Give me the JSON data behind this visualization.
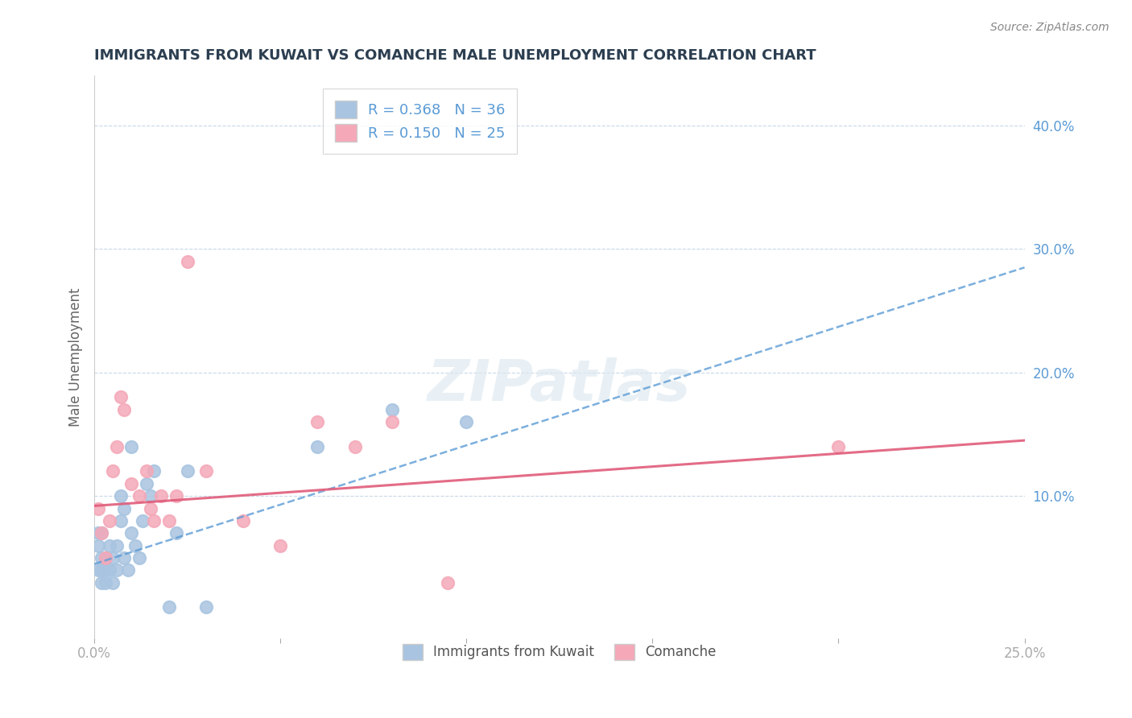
{
  "title": "IMMIGRANTS FROM KUWAIT VS COMANCHE MALE UNEMPLOYMENT CORRELATION CHART",
  "source": "Source: ZipAtlas.com",
  "ylabel": "Male Unemployment",
  "xlim": [
    0.0,
    0.25
  ],
  "ylim": [
    -0.015,
    0.44
  ],
  "yticks": [
    0.0,
    0.1,
    0.2,
    0.3,
    0.4
  ],
  "ytick_labels": [
    "",
    "10.0%",
    "20.0%",
    "30.0%",
    "40.0%"
  ],
  "xticks": [
    0.0,
    0.05,
    0.1,
    0.15,
    0.2,
    0.25
  ],
  "xtick_labels": [
    "0.0%",
    "",
    "",
    "",
    "",
    "25.0%"
  ],
  "watermark": "ZIPatlas",
  "legend_entries": [
    {
      "label": "R = 0.368   N = 36",
      "color": "#a8c4e0"
    },
    {
      "label": "R = 0.150   N = 25",
      "color": "#f4a8b8"
    }
  ],
  "series1_name": "Immigrants from Kuwait",
  "series1_color": "#a8c4e0",
  "series2_name": "Comanche",
  "series2_color": "#f4a8b8",
  "blue_line_color": "#5b9bd5",
  "pink_line_color": "#e05c7a",
  "series1_x": [
    0.001,
    0.001,
    0.001,
    0.002,
    0.002,
    0.002,
    0.002,
    0.003,
    0.003,
    0.003,
    0.004,
    0.004,
    0.005,
    0.005,
    0.006,
    0.006,
    0.007,
    0.007,
    0.008,
    0.008,
    0.009,
    0.01,
    0.01,
    0.011,
    0.012,
    0.013,
    0.014,
    0.015,
    0.016,
    0.02,
    0.022,
    0.025,
    0.03,
    0.06,
    0.08,
    0.1
  ],
  "series1_y": [
    0.04,
    0.06,
    0.07,
    0.03,
    0.04,
    0.05,
    0.07,
    0.03,
    0.04,
    0.05,
    0.04,
    0.06,
    0.03,
    0.05,
    0.04,
    0.06,
    0.08,
    0.1,
    0.05,
    0.09,
    0.04,
    0.07,
    0.14,
    0.06,
    0.05,
    0.08,
    0.11,
    0.1,
    0.12,
    0.01,
    0.07,
    0.12,
    0.01,
    0.14,
    0.17,
    0.16
  ],
  "series2_x": [
    0.001,
    0.002,
    0.003,
    0.004,
    0.005,
    0.006,
    0.007,
    0.008,
    0.01,
    0.012,
    0.014,
    0.015,
    0.016,
    0.018,
    0.02,
    0.022,
    0.025,
    0.03,
    0.04,
    0.05,
    0.06,
    0.07,
    0.08,
    0.095,
    0.2
  ],
  "series2_y": [
    0.09,
    0.07,
    0.05,
    0.08,
    0.12,
    0.14,
    0.18,
    0.17,
    0.11,
    0.1,
    0.12,
    0.09,
    0.08,
    0.1,
    0.08,
    0.1,
    0.29,
    0.12,
    0.08,
    0.06,
    0.16,
    0.14,
    0.16,
    0.03,
    0.14
  ],
  "blue_trend_x": [
    0.0,
    0.25
  ],
  "blue_trend_y": [
    0.045,
    0.285
  ],
  "pink_trend_x": [
    0.0,
    0.25
  ],
  "pink_trend_y": [
    0.092,
    0.145
  ],
  "background_color": "#ffffff",
  "grid_color": "#c8d8e8",
  "title_color": "#2c3e50",
  "axis_label_color": "#5b9bd5",
  "tick_color": "#aaaaaa"
}
